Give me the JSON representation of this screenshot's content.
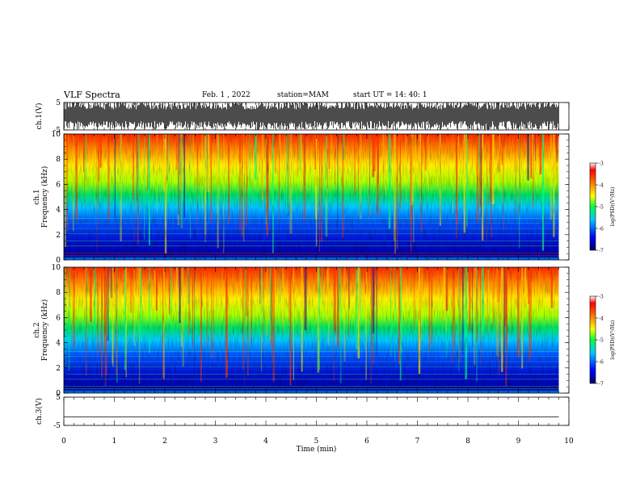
{
  "header": {
    "title": "VLF Spectra",
    "date": "Feb. 1 , 2022",
    "station": "station=MAM",
    "start": "start  UT =  14: 40: 1"
  },
  "chart_data": {
    "type": "heatmap",
    "x_axis": {
      "label": "Time  (min)",
      "range": [
        0,
        10
      ],
      "ticks": [
        0,
        1,
        2,
        3,
        4,
        5,
        6,
        7,
        8,
        9,
        10
      ]
    },
    "panels": [
      {
        "id": "ch1-waveform",
        "type": "line",
        "ylabel": "ch.1(V)",
        "ylim": [
          -5,
          5
        ],
        "y_ticks": [
          5,
          -5
        ]
      },
      {
        "id": "ch1-spectrogram",
        "type": "heatmap",
        "ylabel_top": "ch.1",
        "ylabel": "Frequency (kHz)",
        "ylim": [
          0,
          10
        ],
        "y_ticks": [
          0,
          2,
          4,
          6,
          8,
          10
        ],
        "colorbar": {
          "label": "log(PSD)(V²/Hz)",
          "range": [
            -7,
            -3
          ],
          "ticks": [
            -3,
            -4,
            -5,
            -6,
            -7
          ]
        }
      },
      {
        "id": "ch2-spectrogram",
        "type": "heatmap",
        "ylabel_top": "ch.2",
        "ylabel": "Frequency (kHz)",
        "ylim": [
          0,
          10
        ],
        "y_ticks": [
          0,
          2,
          4,
          6,
          8,
          10
        ],
        "colorbar": {
          "label": "log(PSD)(V²/Hz)",
          "range": [
            -7,
            -3
          ],
          "ticks": [
            -3,
            -4,
            -5,
            -6,
            -7
          ]
        }
      },
      {
        "id": "ch3-waveform",
        "type": "line",
        "ylabel": "ch.3(V)",
        "ylim": [
          -5,
          5
        ],
        "y_ticks": [
          5,
          -5
        ],
        "level": -2
      }
    ],
    "data_end_min": 9.8,
    "grid": false,
    "legend": "colorbar-right"
  }
}
